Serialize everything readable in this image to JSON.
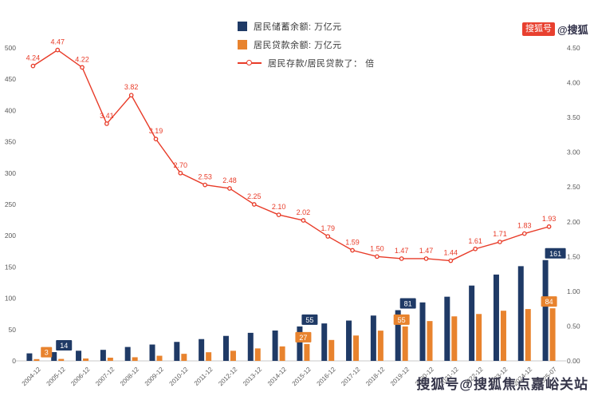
{
  "watermark_top": {
    "badge": "搜狐号",
    "text": "@搜狐"
  },
  "watermark_bottom": "搜狐号@搜狐焦点嘉峪关站",
  "legend": [
    {
      "label": "居民储蓄余额: 万亿元",
      "marker": "square",
      "color": "#1f3a66"
    },
    {
      "label": "居民贷款余额: 万亿元",
      "marker": "square",
      "color": "#e8832e"
    },
    {
      "label": "居民存款/居民贷款了：  倍",
      "marker": "line",
      "color": "#e83b28"
    }
  ],
  "chart_data": {
    "type": "bar",
    "title": "",
    "categories": [
      "2004-12",
      "2005-12",
      "2006-12",
      "2007-12",
      "2008-12",
      "2009-12",
      "2010-12",
      "2011-12",
      "2012-12",
      "2013-12",
      "2014-12",
      "2015-12",
      "2016-12",
      "2017-12",
      "2018-12",
      "2019-12",
      "2020-12",
      "2021-12",
      "2022-12",
      "2023-12",
      "2024-12",
      "2025-07"
    ],
    "series": [
      {
        "name": "居民储蓄余额",
        "chart": "bar",
        "axis": "left",
        "color": "#1f3a66",
        "values": [
          12,
          14,
          16.2,
          17.6,
          22.2,
          26.1,
          30.3,
          34.8,
          39.9,
          44.8,
          48.5,
          55,
          59.8,
          64.4,
          72.4,
          81,
          93.4,
          102.5,
          120.3,
          137.9,
          151.3,
          161
        ]
      },
      {
        "name": "居民贷款余额",
        "chart": "bar",
        "axis": "left",
        "color": "#e8832e",
        "values": [
          2.8,
          3.1,
          3.8,
          5.1,
          5.8,
          8.2,
          11.3,
          13.8,
          16.1,
          19.9,
          23.1,
          27,
          33.4,
          40.5,
          48.3,
          55,
          63.6,
          71.1,
          74.9,
          80.1,
          82.8,
          84
        ]
      },
      {
        "name": "居民存款/居民贷款",
        "chart": "line",
        "axis": "right",
        "color": "#e83b28",
        "values": [
          4.24,
          4.47,
          4.22,
          3.41,
          3.82,
          3.19,
          2.7,
          2.53,
          2.48,
          2.25,
          2.1,
          2.02,
          1.79,
          1.59,
          1.5,
          1.47,
          1.47,
          1.44,
          1.61,
          1.71,
          1.83,
          1.93
        ]
      }
    ],
    "bar_labels": [
      {
        "category": "2005-12",
        "deposit": "14",
        "loan": "3"
      },
      {
        "category": "2015-12",
        "deposit": "55",
        "loan": "27"
      },
      {
        "category": "2019-12",
        "deposit": "81",
        "loan": "55"
      },
      {
        "category": "2025-07",
        "deposit": "161",
        "loan": "84"
      }
    ],
    "left_axis": {
      "max": 500,
      "ticks": [
        0,
        50,
        100,
        150,
        200,
        250,
        300,
        350,
        400,
        450,
        500
      ]
    },
    "right_axis": {
      "max": 4.5,
      "ticks": [
        "0.00",
        "0.50",
        "1.00",
        "1.50",
        "2.00",
        "2.50",
        "3.00",
        "3.50",
        "4.00",
        "4.50"
      ]
    },
    "grid": false,
    "legend_position": "top"
  }
}
